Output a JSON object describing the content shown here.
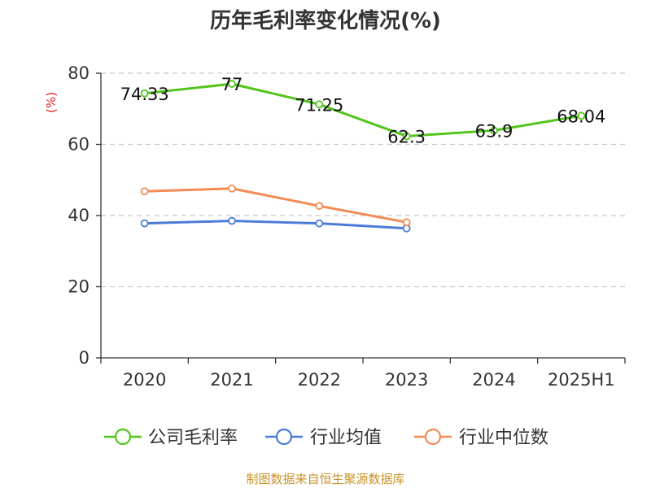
{
  "chart_data": {
    "type": "line",
    "title": "历年毛利率变化情况(%)",
    "ylabel": "(%)",
    "xlabel": "",
    "categories": [
      "2020",
      "2021",
      "2022",
      "2023",
      "2024",
      "2025H1"
    ],
    "ylim": [
      0,
      80
    ],
    "yticks": [
      0,
      20,
      40,
      60,
      80
    ],
    "grid": true,
    "legend_position": "bottom",
    "series": [
      {
        "name": "公司毛利率",
        "color": "#52c41a",
        "values": [
          74.33,
          77,
          71.25,
          62.3,
          63.9,
          68.04
        ],
        "labels": [
          "74.33",
          "77",
          "71.25",
          "62.3",
          "63.9",
          "68.04"
        ]
      },
      {
        "name": "行业均值",
        "color": "#4a7bd8",
        "values": [
          37.8,
          38.5,
          37.8,
          36.4,
          null,
          null
        ]
      },
      {
        "name": "行业中位数",
        "color": "#f28c54",
        "values": [
          46.8,
          47.6,
          42.7,
          38.1,
          null,
          null
        ]
      }
    ]
  },
  "source_text": "制图数据来自恒生聚源数据库"
}
